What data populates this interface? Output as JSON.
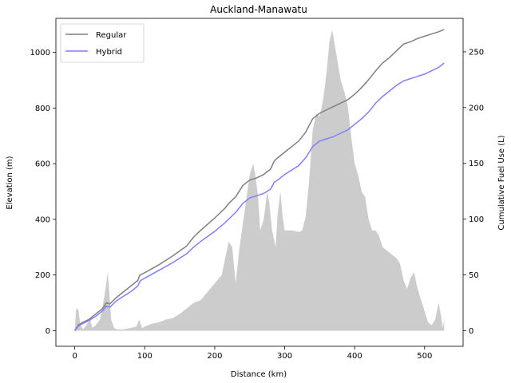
{
  "chart_data": {
    "type": "line",
    "title": "Auckland-Manawatu",
    "xlabel": "Distance (km)",
    "ylabel_left": "Elevation (m)",
    "ylabel_right": "Cumulative Fuel Use (L)",
    "xlim": [
      -27,
      555
    ],
    "xticks": [
      0,
      100,
      200,
      300,
      400,
      500
    ],
    "ylim_left": [
      -56,
      1122
    ],
    "yticks_left": [
      0,
      200,
      400,
      600,
      800,
      1000
    ],
    "ylim_right": [
      -14,
      280
    ],
    "yticks_right": [
      0,
      50,
      100,
      150,
      200,
      250
    ],
    "legend": {
      "placement": "top-left",
      "entries": [
        "Regular",
        "Hybrid"
      ]
    },
    "grid": false,
    "elevation_profile": {
      "color": "#cccccc",
      "points": [
        [
          0,
          0
        ],
        [
          2,
          80
        ],
        [
          5,
          75
        ],
        [
          8,
          20
        ],
        [
          12,
          5
        ],
        [
          18,
          25
        ],
        [
          22,
          40
        ],
        [
          25,
          10
        ],
        [
          30,
          20
        ],
        [
          36,
          40
        ],
        [
          40,
          90
        ],
        [
          44,
          150
        ],
        [
          47,
          210
        ],
        [
          49,
          150
        ],
        [
          52,
          40
        ],
        [
          56,
          10
        ],
        [
          60,
          5
        ],
        [
          70,
          5
        ],
        [
          80,
          10
        ],
        [
          88,
          15
        ],
        [
          92,
          40
        ],
        [
          96,
          10
        ],
        [
          100,
          15
        ],
        [
          110,
          25
        ],
        [
          120,
          30
        ],
        [
          130,
          40
        ],
        [
          140,
          45
        ],
        [
          150,
          60
        ],
        [
          160,
          80
        ],
        [
          170,
          100
        ],
        [
          180,
          110
        ],
        [
          190,
          140
        ],
        [
          200,
          170
        ],
        [
          210,
          200
        ],
        [
          215,
          260
        ],
        [
          220,
          320
        ],
        [
          225,
          300
        ],
        [
          230,
          170
        ],
        [
          235,
          290
        ],
        [
          240,
          380
        ],
        [
          245,
          470
        ],
        [
          250,
          560
        ],
        [
          255,
          600
        ],
        [
          258,
          560
        ],
        [
          262,
          480
        ],
        [
          265,
          360
        ],
        [
          270,
          400
        ],
        [
          275,
          500
        ],
        [
          278,
          460
        ],
        [
          282,
          360
        ],
        [
          287,
          300
        ],
        [
          290,
          420
        ],
        [
          294,
          500
        ],
        [
          297,
          410
        ],
        [
          300,
          360
        ],
        [
          310,
          360
        ],
        [
          320,
          355
        ],
        [
          325,
          360
        ],
        [
          330,
          410
        ],
        [
          335,
          540
        ],
        [
          340,
          720
        ],
        [
          345,
          780
        ],
        [
          350,
          770
        ],
        [
          355,
          830
        ],
        [
          360,
          930
        ],
        [
          364,
          1040
        ],
        [
          368,
          1080
        ],
        [
          372,
          1020
        ],
        [
          376,
          960
        ],
        [
          380,
          900
        ],
        [
          385,
          860
        ],
        [
          390,
          810
        ],
        [
          395,
          700
        ],
        [
          400,
          600
        ],
        [
          405,
          560
        ],
        [
          410,
          500
        ],
        [
          415,
          480
        ],
        [
          420,
          400
        ],
        [
          425,
          360
        ],
        [
          430,
          360
        ],
        [
          435,
          340
        ],
        [
          440,
          300
        ],
        [
          445,
          290
        ],
        [
          450,
          280
        ],
        [
          455,
          270
        ],
        [
          460,
          260
        ],
        [
          465,
          240
        ],
        [
          470,
          180
        ],
        [
          475,
          150
        ],
        [
          480,
          190
        ],
        [
          485,
          210
        ],
        [
          490,
          150
        ],
        [
          495,
          110
        ],
        [
          500,
          70
        ],
        [
          505,
          30
        ],
        [
          510,
          20
        ],
        [
          515,
          40
        ],
        [
          520,
          100
        ],
        [
          523,
          60
        ],
        [
          526,
          10
        ],
        [
          528,
          40
        ],
        [
          528,
          0
        ]
      ]
    },
    "series": [
      {
        "name": "Regular",
        "color": "#7f7f7f",
        "axis": "right",
        "x": [
          0,
          5,
          10,
          20,
          30,
          40,
          45,
          50,
          55,
          60,
          70,
          80,
          90,
          93,
          94,
          100,
          120,
          140,
          160,
          170,
          180,
          200,
          215,
          220,
          230,
          240,
          250,
          260,
          270,
          280,
          285,
          290,
          300,
          320,
          330,
          340,
          350,
          360,
          370,
          380,
          390,
          400,
          410,
          420,
          430,
          440,
          450,
          460,
          470,
          480,
          490,
          500,
          510,
          520,
          528
        ],
        "y": [
          0,
          5,
          7,
          10,
          15,
          20,
          25,
          24,
          27,
          30,
          35,
          40,
          45,
          50,
          50,
          52,
          59,
          67,
          76,
          84,
          90,
          101,
          110,
          114,
          120,
          130,
          135,
          137,
          140,
          145,
          152,
          155,
          160,
          170,
          178,
          190,
          195,
          198,
          201,
          204,
          207,
          212,
          218,
          225,
          233,
          240,
          245,
          251,
          257,
          259,
          262,
          264,
          266,
          268,
          270
        ]
      },
      {
        "name": "Hybrid",
        "color": "#7f7fff",
        "axis": "right",
        "x": [
          0,
          5,
          10,
          20,
          30,
          40,
          45,
          50,
          55,
          60,
          70,
          80,
          90,
          93,
          94,
          100,
          120,
          140,
          160,
          170,
          180,
          200,
          215,
          220,
          230,
          240,
          250,
          260,
          270,
          280,
          285,
          290,
          300,
          320,
          330,
          340,
          350,
          360,
          370,
          380,
          390,
          400,
          410,
          420,
          430,
          440,
          450,
          460,
          470,
          480,
          490,
          500,
          510,
          520,
          528
        ],
        "y": [
          0,
          4,
          6,
          9,
          13,
          18,
          22,
          21,
          24,
          27,
          31,
          35,
          40,
          44,
          45,
          47,
          54,
          61,
          69,
          75,
          80,
          89,
          97,
          100,
          106,
          114,
          119,
          121,
          123,
          127,
          133,
          135,
          140,
          148,
          155,
          165,
          170,
          172,
          174,
          177,
          180,
          185,
          190,
          196,
          204,
          210,
          215,
          220,
          224,
          226,
          228,
          230,
          233,
          236,
          240
        ]
      }
    ]
  }
}
